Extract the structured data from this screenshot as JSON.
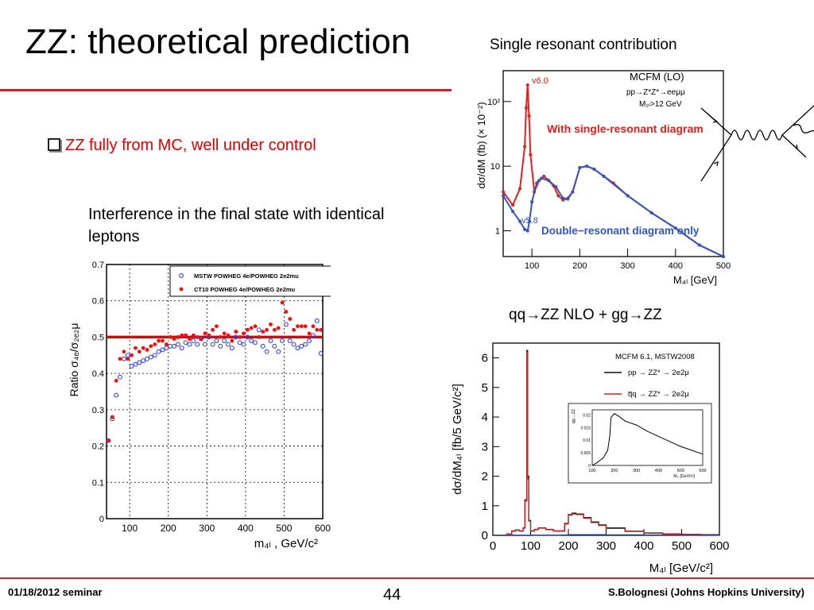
{
  "slide": {
    "title": "ZZ: theoretical prediction",
    "bullet": "ZZ fully from MC, well under control",
    "interference_caption": "Interference in the final state with identical leptons",
    "single_resonant_caption": "Single resonant contribution",
    "qq_caption": "qq→ZZ NLO + gg→ZZ",
    "accent_color": "#c0272d",
    "bullet_color": "#e00000"
  },
  "footer": {
    "date": "01/18/2012 seminar",
    "page": "44",
    "author": "S.Bolognesi (Johns Hopkins University)"
  },
  "chart_data": [
    {
      "type": "scatter",
      "ylabel": "Ratio σ₄ₑ/σ₂ₑ₂μ",
      "xlabel": "m₄ₗ , GeV/c²",
      "xlim": [
        40,
        600
      ],
      "ylim": [
        0,
        0.7
      ],
      "x_ticks": [
        "100",
        "200",
        "300",
        "400",
        "500",
        "600"
      ],
      "y_ticks": [
        "0",
        "0.1",
        "0.2",
        "0.3",
        "0.4",
        "0.5",
        "0.6",
        "0.7"
      ],
      "grid": true,
      "legend_position": "top-right",
      "reference_line": 0.5,
      "series": [
        {
          "name": "MSTW POWHEG 4e/POWHEG 2e2mu",
          "color": "#3344ee",
          "marker": "open-circle",
          "x": [
            45,
            55,
            65,
            75,
            85,
            95,
            105,
            115,
            125,
            135,
            145,
            155,
            165,
            175,
            185,
            195,
            205,
            215,
            225,
            235,
            245,
            255,
            265,
            275,
            285,
            295,
            305,
            315,
            325,
            335,
            345,
            355,
            365,
            375,
            385,
            395,
            405,
            415,
            425,
            435,
            445,
            455,
            465,
            475,
            485,
            495,
            505,
            515,
            525,
            535,
            545,
            555,
            565,
            575,
            585,
            595
          ],
          "y": [
            0.215,
            0.275,
            0.34,
            0.39,
            0.44,
            0.45,
            0.42,
            0.425,
            0.43,
            0.435,
            0.44,
            0.445,
            0.45,
            0.46,
            0.465,
            0.47,
            0.475,
            0.475,
            0.48,
            0.47,
            0.485,
            0.48,
            0.49,
            0.48,
            0.495,
            0.48,
            0.5,
            0.48,
            0.49,
            0.475,
            0.49,
            0.48,
            0.47,
            0.5,
            0.485,
            0.48,
            0.5,
            0.49,
            0.485,
            0.52,
            0.475,
            0.46,
            0.49,
            0.475,
            0.46,
            0.49,
            0.535,
            0.49,
            0.48,
            0.47,
            0.475,
            0.48,
            0.49,
            0.505,
            0.545,
            0.455
          ]
        },
        {
          "name": "CT10 POWHEG 4e/POWHEG 2e2mu",
          "color": "#ee1111",
          "marker": "filled-circle",
          "x": [
            45,
            55,
            65,
            75,
            85,
            95,
            105,
            115,
            125,
            135,
            145,
            155,
            165,
            175,
            185,
            195,
            205,
            215,
            225,
            235,
            245,
            255,
            265,
            275,
            285,
            295,
            305,
            315,
            325,
            335,
            345,
            355,
            365,
            375,
            385,
            395,
            405,
            415,
            425,
            435,
            445,
            455,
            465,
            475,
            485,
            495,
            505,
            515,
            525,
            535,
            545,
            555,
            565,
            575,
            585,
            595
          ],
          "y": [
            0.215,
            0.28,
            0.38,
            0.44,
            0.46,
            0.44,
            0.45,
            0.47,
            0.46,
            0.47,
            0.465,
            0.475,
            0.48,
            0.49,
            0.49,
            0.48,
            0.5,
            0.495,
            0.5,
            0.505,
            0.505,
            0.495,
            0.505,
            0.5,
            0.495,
            0.51,
            0.505,
            0.52,
            0.53,
            0.5,
            0.51,
            0.505,
            0.49,
            0.515,
            0.5,
            0.51,
            0.52,
            0.525,
            0.53,
            0.5,
            0.515,
            0.52,
            0.535,
            0.52,
            0.525,
            0.595,
            0.57,
            0.55,
            0.52,
            0.53,
            0.53,
            0.53,
            0.51,
            0.53,
            0.52,
            0.52
          ]
        }
      ]
    },
    {
      "type": "line",
      "ylabel": "dσ/dM (fb) (× 10⁻²)",
      "xlabel": "M₄ₗ [GeV]",
      "x_scale": "linear",
      "y_scale": "log",
      "xlim": [
        40,
        500
      ],
      "ylim": [
        0.4,
        300
      ],
      "x_ticks": [
        "100",
        "200",
        "300",
        "400",
        "500"
      ],
      "y_ticks": [
        "1",
        "10",
        "10²"
      ],
      "annotations": [
        "MCFM (LO)",
        "pp→Z*Z*→eeμμ",
        "M₂ₗ>12 GeV",
        "v6.0",
        "v5.8"
      ],
      "series": [
        {
          "name": "With single-resonant diagram",
          "color": "#dd2222",
          "x": [
            40,
            60,
            75,
            85,
            88,
            91,
            94,
            97,
            105,
            115,
            125,
            135,
            145,
            155,
            165,
            175,
            185,
            200,
            215,
            230,
            250,
            270,
            300,
            350,
            400,
            450,
            500
          ],
          "y": [
            4,
            2.5,
            4.5,
            20,
            80,
            180,
            60,
            15,
            4,
            6,
            7,
            6,
            5,
            3.5,
            3,
            3.2,
            4,
            9.5,
            10,
            9,
            7,
            5.5,
            3.5,
            1.9,
            1.1,
            0.6,
            0.4
          ]
        },
        {
          "name": "Double−resonant diagram only",
          "color": "#3355bb",
          "x": [
            40,
            60,
            75,
            85,
            91,
            95,
            100,
            110,
            120,
            135,
            150,
            165,
            175,
            185,
            200,
            215,
            230,
            250,
            300,
            350,
            400,
            450,
            500
          ],
          "y": [
            3.5,
            2,
            1.4,
            1.05,
            1,
            1.4,
            2.8,
            5.5,
            6.5,
            6,
            4.8,
            3.2,
            3.1,
            4,
            9.5,
            10,
            9,
            7,
            3.5,
            1.9,
            1.1,
            0.6,
            0.4
          ]
        }
      ]
    },
    {
      "type": "line",
      "ylabel": "dσ/dM₄ₗ [fb/5 GeV/c²]",
      "xlabel": "M₄ₗ [GeV/c²]",
      "xlim": [
        0,
        600
      ],
      "ylim": [
        0,
        6.5
      ],
      "x_ticks": [
        "0",
        "100",
        "200",
        "300",
        "400",
        "500",
        "600"
      ],
      "y_ticks": [
        "0",
        "1",
        "2",
        "3",
        "4",
        "5",
        "6"
      ],
      "annotations": [
        "MCFM 6.1, MSTW2008"
      ],
      "series": [
        {
          "name": "pp → ZZ* → 2e2μ",
          "color": "#111111",
          "x": [
            35,
            50,
            60,
            70,
            80,
            85,
            90,
            92,
            95,
            100,
            110,
            120,
            140,
            160,
            180,
            190,
            200,
            210,
            220,
            240,
            260,
            280,
            300,
            350,
            400,
            450,
            500,
            550,
            600
          ],
          "y": [
            0.05,
            0.15,
            0.18,
            0.15,
            0.25,
            1.2,
            6.25,
            2.0,
            0.5,
            0.15,
            0.2,
            0.25,
            0.2,
            0.15,
            0.15,
            0.4,
            0.7,
            0.75,
            0.72,
            0.6,
            0.45,
            0.35,
            0.25,
            0.14,
            0.08,
            0.05,
            0.03,
            0.02,
            0.01
          ]
        },
        {
          "name": "q̅q → ZZ* → 2e2μ",
          "color": "#dd2222",
          "x": [
            35,
            50,
            60,
            70,
            80,
            85,
            90,
            92,
            95,
            100,
            110,
            120,
            140,
            160,
            180,
            190,
            200,
            210,
            220,
            240,
            260,
            280,
            300,
            350,
            400,
            450,
            500,
            550,
            600
          ],
          "y": [
            0.05,
            0.14,
            0.17,
            0.14,
            0.24,
            1.15,
            6.2,
            1.9,
            0.48,
            0.14,
            0.19,
            0.24,
            0.19,
            0.14,
            0.14,
            0.38,
            0.68,
            0.72,
            0.7,
            0.58,
            0.43,
            0.33,
            0.23,
            0.13,
            0.07,
            0.045,
            0.025,
            0.015,
            0.01
          ]
        },
        {
          "name": "gg → ZZ* → 2e2μ",
          "color": "#2233cc",
          "x": [
            35,
            100,
            180,
            200,
            300,
            400,
            500,
            600
          ],
          "y": [
            0.0,
            0.005,
            0.01,
            0.02,
            0.015,
            0.01,
            0.005,
            0.003
          ]
        }
      ],
      "inset": {
        "ylabel": "gg→ZZ",
        "xlabel": "M₄ₗ [GeV/c²]",
        "xlim": [
          100,
          600
        ],
        "ylim": [
          0,
          0.022
        ],
        "x_ticks": [
          "100",
          "200",
          "300",
          "400",
          "500",
          "600"
        ],
        "y_ticks": [
          "0",
          "0.005",
          "0.01",
          "0.015",
          "0.02"
        ],
        "x": [
          100,
          120,
          150,
          170,
          180,
          185,
          200,
          220,
          250,
          300,
          350,
          400,
          450,
          500,
          550,
          600
        ],
        "y": [
          0.0,
          0.001,
          0.003,
          0.006,
          0.012,
          0.019,
          0.0205,
          0.0195,
          0.0175,
          0.016,
          0.0135,
          0.0115,
          0.0095,
          0.0075,
          0.006,
          0.0045
        ]
      }
    }
  ]
}
